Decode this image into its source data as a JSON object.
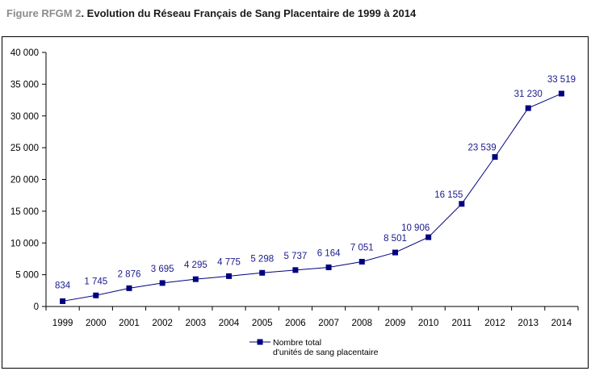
{
  "title": {
    "prefix": "Figure RFGM 2",
    "text": ". Evolution du Réseau Français de Sang Placentaire de 1999 à 2014"
  },
  "chart_data": {
    "type": "line",
    "categories": [
      "1999",
      "2000",
      "2001",
      "2002",
      "2003",
      "2004",
      "2005",
      "2006",
      "2007",
      "2008",
      "2009",
      "2010",
      "2011",
      "2012",
      "2013",
      "2014"
    ],
    "series": [
      {
        "name": "Nombre total d'unités de sang placentaire",
        "legend_lines": [
          "Nombre total",
          "d'unités de sang placentaire"
        ],
        "values": [
          834,
          1745,
          2876,
          3695,
          4295,
          4775,
          5298,
          5737,
          6164,
          7051,
          8501,
          10906,
          16155,
          23539,
          31230,
          33519
        ],
        "data_labels": [
          "834",
          "1 745",
          "2 876",
          "3 695",
          "4 295",
          "4 775",
          "5 298",
          "5 737",
          "6 164",
          "7 051",
          "8 501",
          "10 906",
          "16 155",
          "23 539",
          "31 230",
          "33 519"
        ],
        "color": "#000080"
      }
    ],
    "y_ticks": [
      0,
      5000,
      10000,
      15000,
      20000,
      25000,
      30000,
      35000,
      40000
    ],
    "y_tick_labels": [
      "0",
      "5 000",
      "10 000",
      "15 000",
      "20 000",
      "25 000",
      "30 000",
      "35 000",
      "40 000"
    ],
    "ylim": [
      0,
      40000
    ],
    "grid": false,
    "legend_position": "bottom"
  }
}
